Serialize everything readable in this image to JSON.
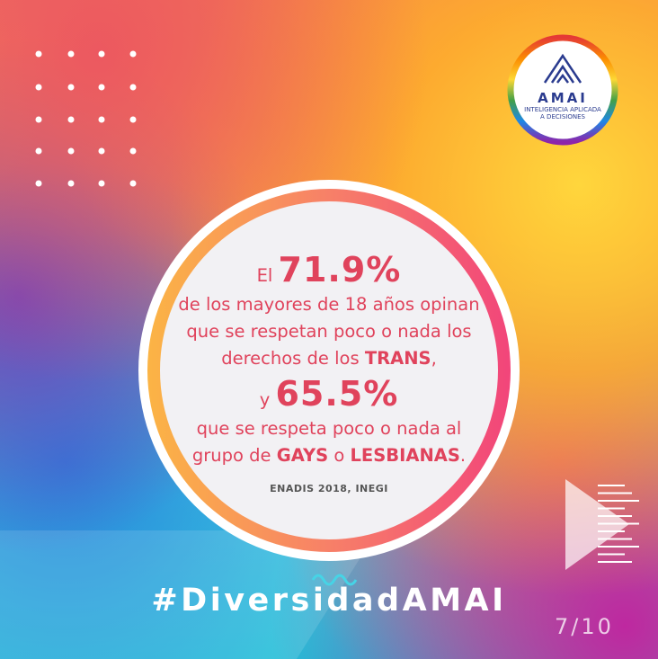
{
  "logo": {
    "name": "AMAI",
    "tagline_1": "INTELIGENCIA APLICADA",
    "tagline_2": "A DECISIONES"
  },
  "statement": {
    "lines": [
      [
        "El ",
        "71.9%"
      ],
      [
        "de los mayores de 18 años opinan"
      ],
      [
        "que se respetan poco o nada los"
      ],
      [
        "derechos de los ",
        "TRANS",
        ","
      ],
      [
        "y ",
        "65.5%"
      ],
      [
        "que se respeta poco o nada al"
      ],
      [
        "grupo de ",
        "GAYS",
        " o ",
        "LESBIANAS",
        "."
      ]
    ]
  },
  "source": "ENADIS 2018, INEGI",
  "hashtag": "#DiversidadAMAI",
  "page_indicator": "7/10"
}
